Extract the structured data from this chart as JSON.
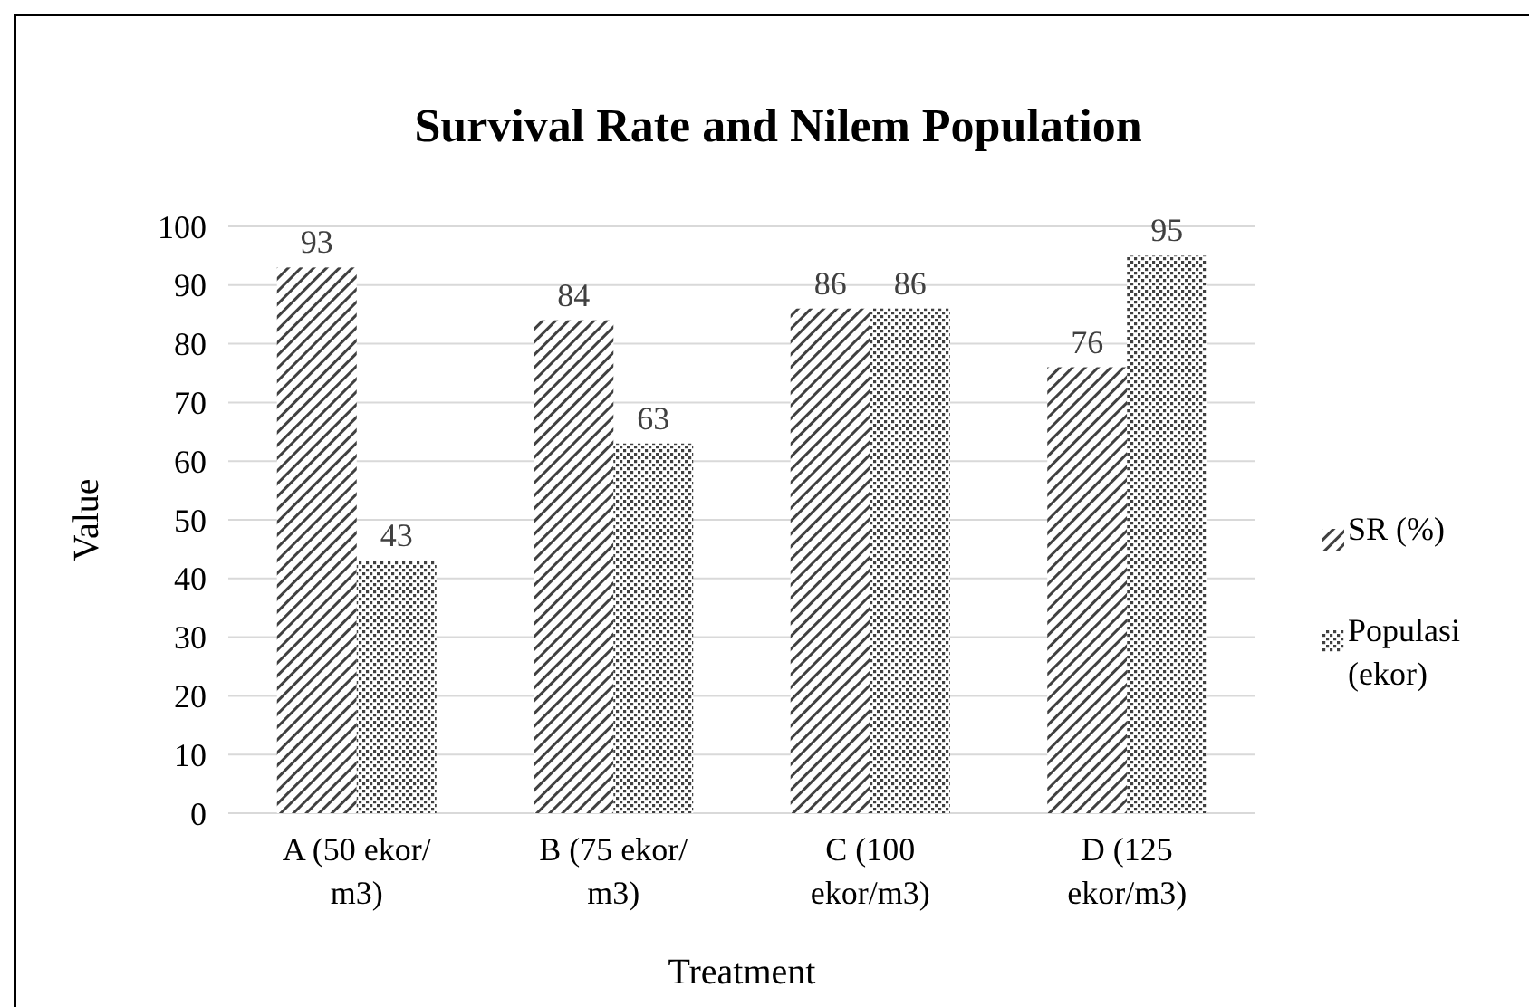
{
  "chart_data": {
    "type": "bar",
    "title": "Survival Rate and Nilem Population",
    "xlabel": "Treatment",
    "ylabel": "Value",
    "categories": [
      "A (50 ekor/m3)",
      "B (75 ekor/m3)",
      "C (100 ekor/m3)",
      "D (125 ekor/m3)"
    ],
    "series": [
      {
        "name": "SR (%)",
        "color": "#404040",
        "values": [
          93,
          84,
          86,
          76
        ]
      },
      {
        "name": "Populasi (ekor)",
        "color": "#404040",
        "values": [
          43,
          63,
          86,
          95
        ]
      }
    ],
    "ylim": [
      0,
      100
    ],
    "yticks": [
      0,
      10,
      20,
      30,
      40,
      50,
      60,
      70,
      80,
      90,
      100
    ],
    "grid": "y",
    "legend": "right",
    "data_labels": true
  }
}
